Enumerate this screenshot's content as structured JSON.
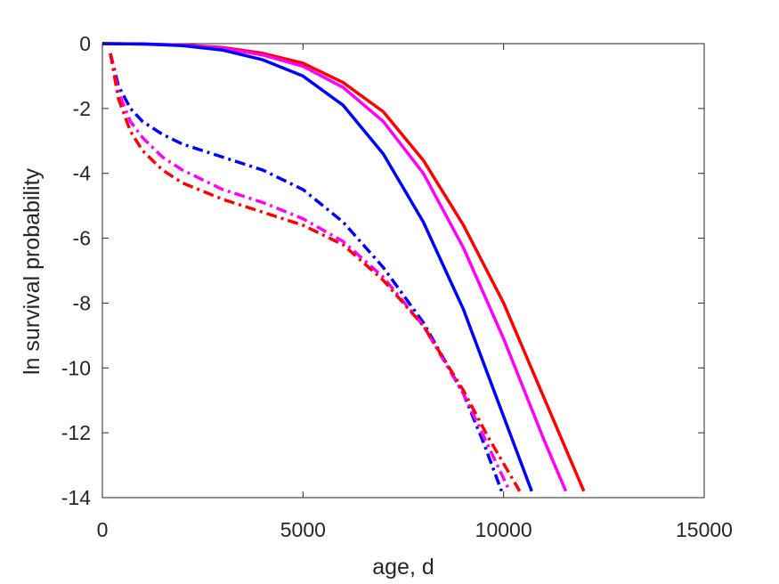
{
  "chart_data": {
    "type": "line",
    "xlabel": "age, d",
    "ylabel": "ln survival probability",
    "xlim": [
      0,
      15000
    ],
    "ylim": [
      -14,
      0
    ],
    "xticks": [
      0,
      5000,
      10000,
      15000
    ],
    "yticks": [
      0,
      -2,
      -4,
      -6,
      -8,
      -10,
      -12,
      -14
    ],
    "xtick_labels": [
      "0",
      "5000",
      "10000",
      "15000"
    ],
    "ytick_labels": [
      "0",
      "-2",
      "-4",
      "-6",
      "-8",
      "-10",
      "-12",
      "-14"
    ],
    "grid": false,
    "legend": "none",
    "series": [
      {
        "color": "#ff0000",
        "style": "solid",
        "x": [
          0,
          1000,
          2000,
          3000,
          4000,
          5000,
          6000,
          7000,
          8000,
          9000,
          10000,
          11000,
          12000
        ],
        "y": [
          0,
          -0.01,
          -0.04,
          -0.12,
          -0.3,
          -0.6,
          -1.2,
          -2.1,
          -3.6,
          -5.6,
          -8.0,
          -10.9,
          -13.8
        ]
      },
      {
        "color": "#ff00ff",
        "style": "solid",
        "x": [
          0,
          1000,
          2000,
          3000,
          4000,
          5000,
          6000,
          7000,
          8000,
          9000,
          10000,
          11000,
          11550
        ],
        "y": [
          0,
          -0.01,
          -0.05,
          -0.14,
          -0.35,
          -0.7,
          -1.35,
          -2.4,
          -4.0,
          -6.3,
          -9.1,
          -12.2,
          -13.8
        ]
      },
      {
        "color": "#0000ff",
        "style": "solid",
        "x": [
          0,
          1000,
          2000,
          3000,
          4000,
          5000,
          6000,
          7000,
          8000,
          9000,
          10000,
          10700
        ],
        "y": [
          0,
          -0.01,
          -0.06,
          -0.2,
          -0.5,
          -1.0,
          -1.9,
          -3.4,
          -5.5,
          -8.2,
          -11.5,
          -13.8
        ]
      },
      {
        "color": "#0000ff",
        "style": "dashdot",
        "x": [
          200,
          400,
          700,
          1000,
          1500,
          2000,
          3000,
          4000,
          5000,
          6000,
          7000,
          8000,
          9000,
          9500,
          9950
        ],
        "y": [
          -0.3,
          -1.3,
          -2.0,
          -2.4,
          -2.8,
          -3.1,
          -3.5,
          -3.9,
          -4.5,
          -5.5,
          -6.9,
          -8.6,
          -10.8,
          -12.3,
          -13.8
        ]
      },
      {
        "color": "#ff00ff",
        "style": "dashdot",
        "x": [
          200,
          400,
          700,
          1000,
          1500,
          2000,
          3000,
          4000,
          5000,
          6000,
          7000,
          8000,
          9000,
          9500,
          10150
        ],
        "y": [
          -0.3,
          -1.5,
          -2.4,
          -2.9,
          -3.5,
          -3.9,
          -4.5,
          -4.9,
          -5.4,
          -6.1,
          -7.2,
          -8.7,
          -10.8,
          -12.1,
          -13.8
        ]
      },
      {
        "color": "#ff0000",
        "style": "dashdot",
        "x": [
          200,
          400,
          700,
          1000,
          1500,
          2000,
          3000,
          4000,
          5000,
          6000,
          7000,
          8000,
          9000,
          9600,
          10400
        ],
        "y": [
          -0.3,
          -1.7,
          -2.7,
          -3.3,
          -3.9,
          -4.3,
          -4.8,
          -5.2,
          -5.6,
          -6.2,
          -7.3,
          -8.7,
          -10.7,
          -12.1,
          -13.8
        ]
      }
    ]
  }
}
